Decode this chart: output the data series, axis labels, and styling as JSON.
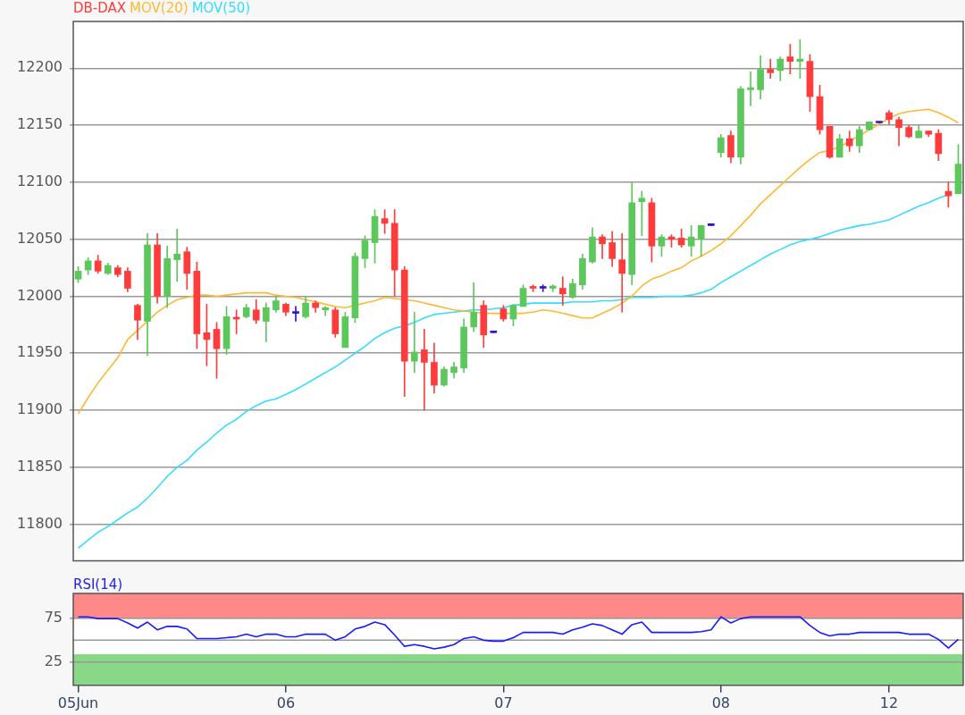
{
  "chart_data": [
    {
      "type": "candlestick",
      "categories": [
        null,
        null,
        null,
        null,
        null,
        null,
        null,
        null,
        null,
        null,
        null,
        null,
        null,
        null,
        null,
        null,
        null,
        null,
        null,
        null,
        null,
        null,
        null,
        null,
        null,
        null,
        null,
        null,
        null,
        null,
        null,
        null,
        null,
        null,
        null,
        null,
        null,
        null,
        null,
        null,
        null,
        null,
        null,
        null,
        null,
        null,
        null,
        null,
        null,
        null,
        null,
        null,
        null,
        null,
        null,
        null,
        null,
        null,
        null,
        null,
        null,
        null,
        null,
        null,
        null,
        null,
        null,
        null,
        null,
        null,
        null,
        null,
        null,
        null,
        null,
        null,
        null,
        null,
        null,
        null,
        null,
        null,
        null,
        null,
        null,
        null,
        null,
        null,
        null,
        null
      ],
      "series": [
        {
          "name": "DB-DAX",
          "color": "#ff3b3b",
          "ohlc": [
            [
              12015,
              12026,
              12012,
              12022
            ],
            [
              12023,
              12034,
              12019,
              12031
            ],
            [
              12031,
              12036,
              12020,
              12022
            ],
            [
              12020,
              12029,
              12019,
              12027
            ],
            [
              12025,
              12027,
              12017,
              12019
            ],
            [
              12022,
              12025,
              12004,
              12007
            ],
            [
              11992,
              11993,
              11962,
              11979
            ],
            [
              11978,
              12055,
              11948,
              12045
            ],
            [
              12045,
              12055,
              11994,
              12000
            ],
            [
              12000,
              12044,
              11990,
              12033
            ],
            [
              12032,
              12059,
              12013,
              12037
            ],
            [
              12039,
              12043,
              12006,
              12020
            ],
            [
              12022,
              12030,
              11954,
              11967
            ],
            [
              11968,
              11993,
              11939,
              11962
            ],
            [
              11971,
              11977,
              11928,
              11954
            ],
            [
              11954,
              11991,
              11949,
              11982
            ],
            [
              11981,
              11988,
              11967,
              11980
            ],
            [
              11982,
              11993,
              11981,
              11990
            ],
            [
              11988,
              11997,
              11976,
              11979
            ],
            [
              11978,
              11994,
              11960,
              11990
            ],
            [
              11988,
              12000,
              11986,
              11996
            ],
            [
              11993,
              11994,
              11983,
              11986
            ],
            [
              11985,
              11991,
              11978,
              11985
            ],
            [
              11982,
              12000,
              11981,
              11994
            ],
            [
              11994,
              11996,
              11986,
              11990
            ],
            [
              11988,
              11991,
              11983,
              11990
            ],
            [
              11988,
              11990,
              11964,
              11967
            ],
            [
              11955,
              11986,
              11955,
              11982
            ],
            [
              11981,
              12038,
              11977,
              12035
            ],
            [
              12033,
              12053,
              12025,
              12049
            ],
            [
              12047,
              12076,
              12029,
              12070
            ],
            [
              12068,
              12076,
              12055,
              12064
            ],
            [
              12064,
              12076,
              12000,
              12023
            ],
            [
              12023,
              12026,
              11912,
              11943
            ],
            [
              11943,
              11986,
              11933,
              11951
            ],
            [
              11953,
              11971,
              11900,
              11942
            ],
            [
              11942,
              11959,
              11915,
              11922
            ],
            [
              11922,
              11938,
              11921,
              11936
            ],
            [
              11933,
              11942,
              11928,
              11938
            ],
            [
              11937,
              11980,
              11933,
              11973
            ],
            [
              11973,
              12012,
              11969,
              11986
            ],
            [
              11992,
              11996,
              11955,
              11966
            ],
            [
              11968,
              11968,
              11968,
              11968
            ],
            [
              11989,
              11992,
              11978,
              11980
            ],
            [
              11980,
              11993,
              11974,
              11992
            ],
            [
              11991,
              12010,
              11991,
              12007
            ],
            [
              12008,
              12010,
              12004,
              12007
            ],
            [
              12007,
              12010,
              12004,
              12007
            ],
            [
              12007,
              12010,
              12004,
              12009
            ],
            [
              12007,
              12017,
              11992,
              12002
            ],
            [
              11999,
              12015,
              11998,
              12011
            ],
            [
              12010,
              12037,
              12006,
              12033
            ],
            [
              12030,
              12060,
              12029,
              12052
            ],
            [
              12052,
              12054,
              12033,
              12046
            ],
            [
              12047,
              12057,
              12026,
              12033
            ],
            [
              12032,
              12055,
              11986,
              12020
            ],
            [
              12019,
              12100,
              12010,
              12082
            ],
            [
              12083,
              12092,
              12053,
              12086
            ],
            [
              12082,
              12086,
              12030,
              12044
            ],
            [
              12044,
              12054,
              12035,
              12052
            ],
            [
              12052,
              12054,
              12043,
              12050
            ],
            [
              12051,
              12059,
              12043,
              12045
            ],
            [
              12044,
              12062,
              12035,
              12052
            ],
            [
              12050,
              12062,
              12035,
              12062
            ],
            [
              12062,
              12062,
              12062,
              12062
            ],
            [
              12126,
              12142,
              12122,
              12139
            ],
            [
              12141,
              12145,
              12117,
              12122
            ],
            [
              12122,
              12184,
              12116,
              12182
            ],
            [
              12181,
              12197,
              12167,
              12183
            ],
            [
              12181,
              12211,
              12173,
              12199
            ],
            [
              12199,
              12208,
              12191,
              12196
            ],
            [
              12198,
              12210,
              12189,
              12208
            ],
            [
              12210,
              12221,
              12195,
              12206
            ],
            [
              12206,
              12225,
              12191,
              12208
            ],
            [
              12206,
              12212,
              12162,
              12175
            ],
            [
              12175,
              12185,
              12142,
              12146
            ],
            [
              12149,
              12149,
              12121,
              12122
            ],
            [
              12122,
              12142,
              12122,
              12138
            ],
            [
              12138,
              12145,
              12127,
              12132
            ],
            [
              12132,
              12149,
              12126,
              12146
            ],
            [
              12146,
              12153,
              12146,
              12153
            ],
            [
              12152,
              12152,
              12152,
              12152
            ],
            [
              12161,
              12163,
              12151,
              12155
            ],
            [
              12155,
              12157,
              12132,
              12148
            ],
            [
              12148,
              12150,
              12139,
              12140
            ],
            [
              12139,
              12150,
              12139,
              12145
            ],
            [
              12145,
              12145,
              12140,
              12142
            ],
            [
              12143,
              12146,
              12119,
              12125
            ],
            [
              12092,
              12100,
              12078,
              12088
            ],
            [
              12090,
              12133,
              12090,
              12116
            ]
          ],
          "colors": [
            "#5cc85c",
            "#5cc85c",
            "#ff3b3b",
            "#5cc85c",
            "#ff3b3b",
            "#ff3b3b",
            "#ff3b3b",
            "#5cc85c",
            "#ff3b3b",
            "#5cc85c",
            "#5cc85c",
            "#ff3b3b",
            "#ff3b3b",
            "#ff3b3b",
            "#ff3b3b",
            "#5cc85c",
            "#ff3b3b",
            "#5cc85c",
            "#ff3b3b",
            "#5cc85c",
            "#5cc85c",
            "#ff3b3b",
            "#3311cc",
            "#5cc85c",
            "#ff3b3b",
            "#5cc85c",
            "#ff3b3b",
            "#5cc85c",
            "#5cc85c",
            "#5cc85c",
            "#5cc85c",
            "#ff3b3b",
            "#ff3b3b",
            "#ff3b3b",
            "#5cc85c",
            "#ff3b3b",
            "#ff3b3b",
            "#5cc85c",
            "#5cc85c",
            "#5cc85c",
            "#5cc85c",
            "#ff3b3b",
            "#3311cc",
            "#ff3b3b",
            "#5cc85c",
            "#5cc85c",
            "#ff3b3b",
            "#3311cc",
            "#5cc85c",
            "#ff3b3b",
            "#5cc85c",
            "#5cc85c",
            "#5cc85c",
            "#ff3b3b",
            "#ff3b3b",
            "#ff3b3b",
            "#5cc85c",
            "#5cc85c",
            "#ff3b3b",
            "#5cc85c",
            "#ff3b3b",
            "#ff3b3b",
            "#5cc85c",
            "#5cc85c",
            "#3311cc",
            "#5cc85c",
            "#ff3b3b",
            "#5cc85c",
            "#5cc85c",
            "#5cc85c",
            "#ff3b3b",
            "#5cc85c",
            "#ff3b3b",
            "#5cc85c",
            "#ff3b3b",
            "#ff3b3b",
            "#ff3b3b",
            "#5cc85c",
            "#ff3b3b",
            "#5cc85c",
            "#5cc85c",
            "#3311cc",
            "#ff3b3b",
            "#ff3b3b",
            "#ff3b3b",
            "#5cc85c",
            "#ff3b3b",
            "#ff3b3b",
            "#ff3b3b",
            "#5cc85c"
          ]
        },
        {
          "type": "line",
          "name": "MOV(20)",
          "color": "#ffb833",
          "values": [
            11897,
            11911,
            11924,
            11935,
            11946,
            11962,
            11970,
            11978,
            11986,
            11992,
            11997,
            11999,
            12001,
            12001,
            12000,
            12001,
            12002,
            12003,
            12003,
            12003,
            12001,
            12000,
            11999,
            11997,
            11995,
            11993,
            11991,
            11990,
            11992,
            11994,
            11996,
            11999,
            11998,
            11997,
            11996,
            11994,
            11992,
            11990,
            11988,
            11987,
            11986,
            11985,
            11985,
            11985,
            11985,
            11985,
            11986,
            11988,
            11987,
            11985,
            11983,
            11981,
            11981,
            11985,
            11989,
            11994,
            12000,
            12009,
            12015,
            12018,
            12022,
            12025,
            12031,
            12035,
            12040,
            12046,
            12053,
            12062,
            12071,
            12081,
            12089,
            12097,
            12105,
            12113,
            12120,
            12126,
            12128,
            12131,
            12136,
            null,
            12146,
            12151,
            12156,
            12160,
            12162,
            12163,
            12164,
            12161,
            12157,
            12152
          ]
        },
        {
          "type": "line",
          "name": "MOV(50)",
          "color": "#33ddff",
          "values": [
            11779,
            11786,
            11793,
            11798,
            11804,
            11810,
            11815,
            11823,
            11832,
            11842,
            11850,
            11856,
            11865,
            11872,
            11880,
            11887,
            11892,
            11899,
            11904,
            11908,
            11910,
            11914,
            11918,
            11923,
            11928,
            11933,
            11938,
            11944,
            11950,
            11956,
            11963,
            11968,
            11972,
            11974,
            11977,
            11981,
            11984,
            11985,
            11986,
            11987,
            11988,
            11988,
            11989,
            11990,
            11992,
            null,
            11994,
            11994,
            11994,
            11994,
            11995,
            11995,
            11995,
            11996,
            11996,
            11997,
            11999,
            11999,
            11999,
            12000,
            12000,
            12000,
            12001,
            12003,
            12006,
            12012,
            12017,
            12022,
            12027,
            12032,
            12037,
            12041,
            12045,
            12048,
            12050,
            12052,
            12055,
            12058,
            12060,
            12062,
            12063,
            12065,
            12067,
            12071,
            12075,
            12079,
            12082,
            12086,
            12089,
            null
          ]
        }
      ],
      "ylim": [
        11768,
        12241
      ],
      "yticks": [
        11800,
        11850,
        11900,
        11950,
        12000,
        12050,
        12100,
        12150,
        12200
      ],
      "grid": "y",
      "legend": "top left",
      "tick_labels": "y",
      "marker": "none"
    },
    {
      "type": "line",
      "categories": [
        "05Jun",
        null,
        null,
        null,
        null,
        null,
        null,
        null,
        null,
        null,
        null,
        null,
        null,
        null,
        null,
        null,
        null,
        null,
        null,
        null,
        null,
        "06",
        null,
        null,
        null,
        null,
        null,
        null,
        null,
        null,
        null,
        null,
        null,
        null,
        null,
        null,
        null,
        null,
        null,
        null,
        null,
        null,
        null,
        "07",
        null,
        null,
        null,
        null,
        null,
        null,
        null,
        null,
        null,
        null,
        null,
        null,
        null,
        null,
        null,
        null,
        null,
        null,
        null,
        null,
        null,
        "08",
        null,
        null,
        null,
        null,
        null,
        null,
        null,
        null,
        null,
        null,
        null,
        null,
        null,
        null,
        null,
        null,
        "12",
        null,
        null,
        null,
        null,
        null,
        null,
        null
      ],
      "series": [
        {
          "name": "RSI(14)",
          "color": "#1a1aff",
          "values": [
            77,
            77,
            75,
            75,
            75,
            70,
            64,
            71,
            62,
            66,
            66,
            63,
            52,
            52,
            52,
            53,
            54,
            57,
            54,
            57,
            57,
            54,
            54,
            57,
            57,
            57,
            50,
            54,
            63,
            66,
            71,
            68,
            56,
            43,
            45,
            43,
            40,
            42,
            45,
            52,
            54,
            50,
            49,
            49,
            53,
            59,
            59,
            59,
            59,
            57,
            62,
            65,
            69,
            67,
            62,
            57,
            68,
            71,
            59,
            59,
            59,
            59,
            59,
            60,
            62,
            77,
            70,
            75,
            77,
            77,
            77,
            77,
            77,
            77,
            67,
            59,
            55,
            57,
            57,
            59,
            59,
            59,
            59,
            59,
            57,
            57,
            57,
            51,
            41,
            51
          ]
        }
      ],
      "ylim": [
        -2,
        104
      ],
      "yticks": [
        25,
        75
      ],
      "bands": [
        {
          "axis": "y",
          "from": 75,
          "to": 104,
          "color": "#ff8888"
        },
        {
          "axis": "y",
          "from": -2,
          "to": 34,
          "color": "#88d888"
        }
      ],
      "ref_lines": [
        {
          "axis": "y",
          "value": 50,
          "color": "#999999"
        }
      ],
      "grid": "y",
      "legend": "top left",
      "marker": "none"
    }
  ]
}
